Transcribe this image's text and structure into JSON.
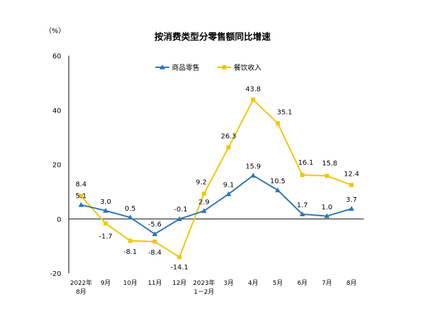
{
  "chart_data": {
    "type": "line",
    "title": "按消费类型分零售额同比增速",
    "ylabel": "（%）",
    "xlabel": "",
    "ylim": [
      -20,
      60
    ],
    "yticks": [
      -20,
      0,
      20,
      40,
      60
    ],
    "grid": false,
    "legend_position": "top-center",
    "categories": [
      {
        "line1": "2022年",
        "line2": "8月"
      },
      {
        "line1": "9月",
        "line2": ""
      },
      {
        "line1": "10月",
        "line2": ""
      },
      {
        "line1": "11月",
        "line2": ""
      },
      {
        "line1": "12月",
        "line2": ""
      },
      {
        "line1": "2023年",
        "line2": "1－2月"
      },
      {
        "line1": "3月",
        "line2": ""
      },
      {
        "line1": "4月",
        "line2": ""
      },
      {
        "line1": "5月",
        "line2": ""
      },
      {
        "line1": "6月",
        "line2": ""
      },
      {
        "line1": "7月",
        "line2": ""
      },
      {
        "line1": "8月",
        "line2": ""
      }
    ],
    "series": [
      {
        "name": "商品零售",
        "color": "#2e75b6",
        "marker": "triangle",
        "values": [
          5.1,
          3.0,
          0.5,
          -5.6,
          -0.1,
          2.9,
          9.1,
          15.9,
          10.5,
          1.7,
          1.0,
          3.7
        ],
        "labels": [
          "5.1",
          "3.0",
          "0.5",
          "-5.6",
          "-0.1",
          "2.9",
          "9.1",
          "15.9",
          "10.5",
          "1.7",
          "1.0",
          "3.7"
        ]
      },
      {
        "name": "餐饮收入",
        "color": "#f5c400",
        "marker": "square",
        "values": [
          8.4,
          -1.7,
          -8.1,
          -8.4,
          -14.1,
          9.2,
          26.3,
          43.8,
          35.1,
          16.1,
          15.8,
          12.4
        ],
        "labels": [
          "8.4",
          "-1.7",
          "-8.1",
          "-8.4",
          "-14.1",
          "9.2",
          "26.3",
          "43.8",
          "35.1",
          "16.1",
          "15.8",
          "12.4"
        ]
      }
    ]
  }
}
